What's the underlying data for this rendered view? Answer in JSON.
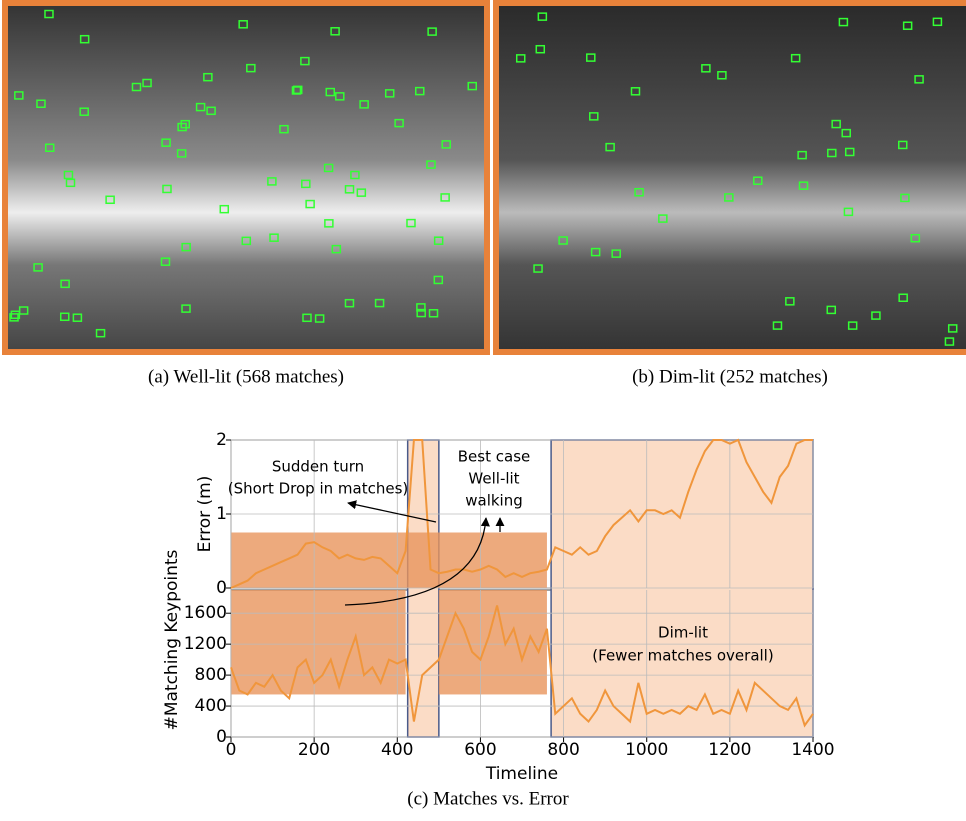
{
  "panels": [
    {
      "caption": "(a) Well-lit (568 matches)"
    },
    {
      "caption": "(b) Dim-lit (252 matches)"
    }
  ],
  "chart_data": {
    "type": "line",
    "caption": "(c) Matches vs. Error",
    "xlabel": "Timeline",
    "ylabel": "Error (m)",
    "y2label": "#Matching Keypoints",
    "x": [
      0,
      20,
      40,
      60,
      80,
      100,
      120,
      140,
      160,
      180,
      200,
      220,
      240,
      260,
      280,
      300,
      320,
      340,
      360,
      380,
      400,
      420,
      440,
      460,
      480,
      500,
      520,
      540,
      560,
      580,
      600,
      620,
      640,
      660,
      680,
      700,
      720,
      740,
      760,
      780,
      800,
      820,
      840,
      860,
      880,
      900,
      920,
      940,
      960,
      980,
      1000,
      1020,
      1040,
      1060,
      1080,
      1100,
      1120,
      1140,
      1160,
      1180,
      1200,
      1220,
      1240,
      1260,
      1280,
      1300,
      1320,
      1340,
      1360,
      1380,
      1400
    ],
    "xlim": [
      0,
      1400
    ],
    "xticks": [
      0,
      200,
      400,
      600,
      800,
      1000,
      1200,
      1400
    ],
    "ylim": [
      0,
      2
    ],
    "yticks": [
      0,
      1,
      2
    ],
    "y2lim": [
      0,
      1900
    ],
    "y2ticks": [
      0,
      400,
      800,
      1200,
      1600
    ],
    "grid": true,
    "series": [
      {
        "color": "#f0963c",
        "values": [
          0.0,
          0.05,
          0.1,
          0.2,
          0.25,
          0.3,
          0.35,
          0.4,
          0.45,
          0.6,
          0.62,
          0.55,
          0.5,
          0.4,
          0.45,
          0.4,
          0.38,
          0.42,
          0.4,
          0.3,
          0.2,
          0.5,
          2.0,
          2.0,
          0.25,
          0.2,
          0.22,
          0.25,
          0.25,
          0.22,
          0.25,
          0.3,
          0.25,
          0.15,
          0.2,
          0.15,
          0.2,
          0.22,
          0.25,
          0.55,
          0.5,
          0.45,
          0.55,
          0.45,
          0.5,
          0.7,
          0.85,
          0.95,
          1.05,
          0.9,
          1.05,
          1.05,
          1.0,
          1.05,
          0.95,
          1.3,
          1.6,
          1.85,
          2.0,
          2.0,
          1.95,
          2.0,
          1.7,
          1.5,
          1.3,
          1.15,
          1.5,
          1.65,
          1.95,
          2.0,
          2.0
        ]
      },
      {
        "color": "#f0963c",
        "axis": "y2",
        "values": [
          900,
          600,
          550,
          700,
          650,
          800,
          600,
          500,
          900,
          1000,
          700,
          800,
          1000,
          650,
          1000,
          1300,
          800,
          900,
          700,
          1000,
          950,
          1000,
          200,
          800,
          900,
          1000,
          1300,
          1600,
          1400,
          1100,
          1000,
          1300,
          1700,
          1200,
          1400,
          1000,
          1300,
          1100,
          1400,
          300,
          400,
          500,
          300,
          200,
          350,
          600,
          400,
          300,
          200,
          700,
          300,
          350,
          300,
          350,
          300,
          400,
          350,
          550,
          300,
          350,
          300,
          600,
          350,
          700,
          600,
          500,
          400,
          350,
          500,
          150,
          300
        ]
      }
    ],
    "bands": [
      {
        "xlim": [
          0,
          760
        ],
        "ylim": [
          0,
          0.75
        ]
      },
      {
        "xlim": [
          0,
          420
        ],
        "y2lim": [
          550,
          1900
        ]
      },
      {
        "xlim": [
          500,
          760
        ],
        "y2lim": [
          550,
          1900
        ]
      }
    ],
    "regions": [
      {
        "xlim": [
          425,
          500
        ]
      },
      {
        "xlim": [
          770,
          1400
        ]
      }
    ],
    "annotations": [
      "Sudden turn",
      "(Short Drop in matches)",
      "Best case",
      "Well-lit",
      "walking",
      "Dim-lit",
      "(Fewer matches overall)"
    ]
  }
}
